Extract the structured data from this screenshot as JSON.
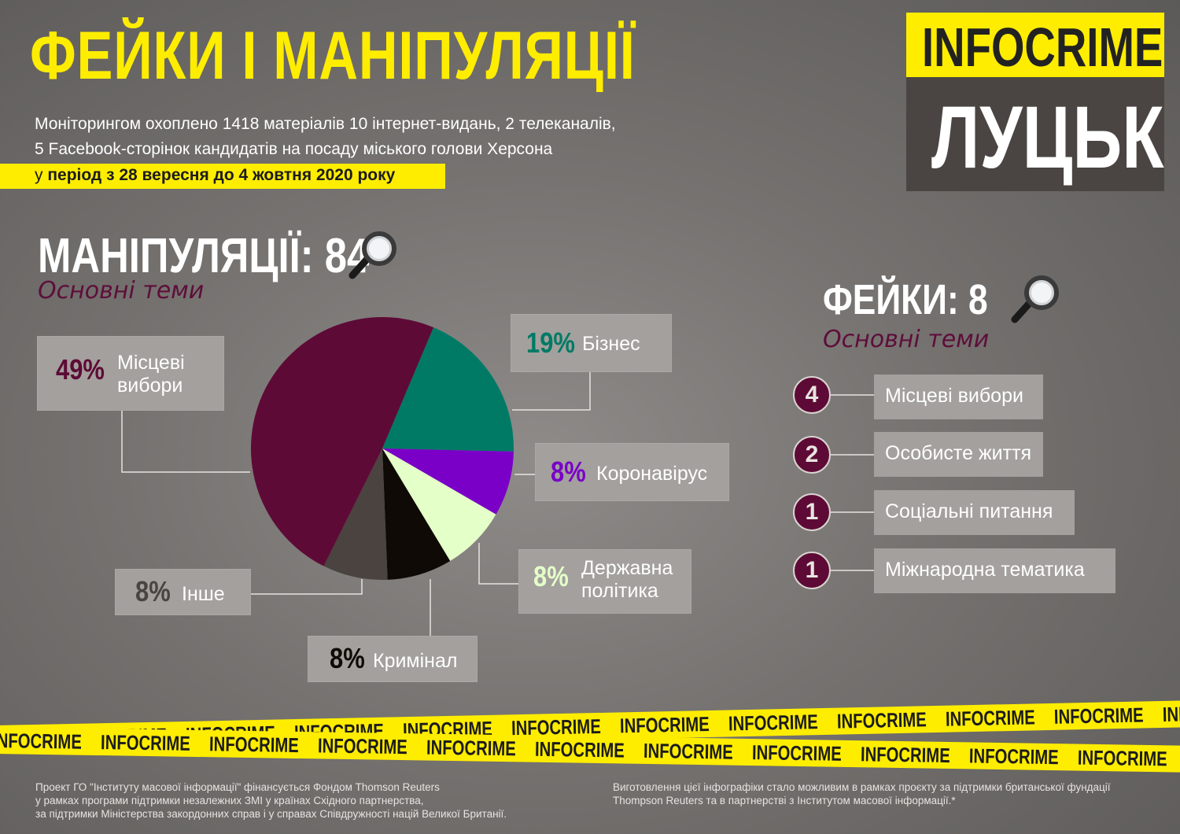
{
  "header": {
    "title": "ФЕЙКИ І МАНІПУЛЯЦІЇ",
    "intro_line1": "Моніторингом охоплено 1418 матеріалів 10 інтернет-видань, 2 телеканалів,",
    "intro_line2": "5 Facebook-сторінок кандидатів на посаду міського голови Херсона",
    "period_prefix": "у ",
    "period": "період з 28 вересня до 4 жовтня 2020 року"
  },
  "logo": {
    "top": "INFOCRIME",
    "bottom": "ЛУЦЬК"
  },
  "manipulations": {
    "heading": "МАНІПУЛЯЦІЇ: 84",
    "subheading": "Основні теми",
    "labels": [
      {
        "pct": "49%",
        "line1": "Місцеві",
        "line2": "вибори"
      },
      {
        "pct": "19%",
        "line1": "Бізнес"
      },
      {
        "pct": "8%",
        "line1": "Коронавірус"
      },
      {
        "pct": "8%",
        "line1": "Державна",
        "line2": "політика"
      },
      {
        "pct": "8%",
        "line1": "Кримінал"
      },
      {
        "pct": "8%",
        "line1": "Інше"
      }
    ]
  },
  "fakes": {
    "heading": "ФЕЙКИ: 8",
    "subheading": "Основні теми",
    "items": [
      {
        "count": "4",
        "label": "Місцеві вибори"
      },
      {
        "count": "2",
        "label": "Особисте життя"
      },
      {
        "count": "1",
        "label": "Соціальні питання"
      },
      {
        "count": "1",
        "label": "Міжнародна тематика"
      }
    ]
  },
  "chart_data": {
    "type": "pie",
    "categories": [
      "Місцеві вибори",
      "Бізнес",
      "Коронавірус",
      "Державна політика",
      "Кримінал",
      "Інше"
    ],
    "values": [
      49,
      19,
      8,
      8,
      8,
      8
    ],
    "colors": [
      "#5e0a36",
      "#007a65",
      "#7a00c8",
      "#e4ffc8",
      "#0f0a05",
      "#4a4340"
    ]
  },
  "tape": {
    "word": "INFOCRIME"
  },
  "footer": {
    "left_line1": "Проект ГО \"Інституту масової інформації\" фінансується Фондом Thomson Reuters",
    "left_line2": "у рамках програми підтримки незалежних ЗМІ у країнах Східного партнерства,",
    "left_line3": "за підтримки Міністерства закордонних справ і у справах Співдружності націй Великої Британії.",
    "right_line1": "Виготовлення цієї інфографіки стало можливим в рамках проєкту за підтримки британської фундації",
    "right_line2": "Thompson Reuters та в партнерстві з Інститутом масової інформації.*"
  }
}
